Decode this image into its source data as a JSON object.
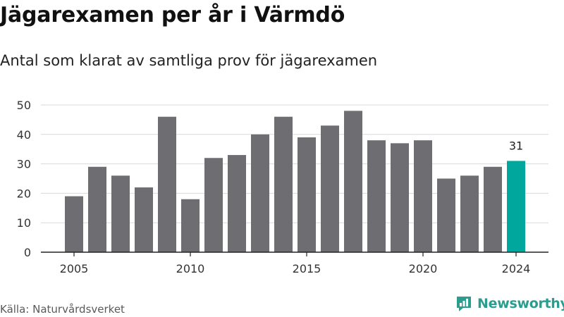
{
  "title": "Jägarexamen per år i Värmdö",
  "subtitle": "Antal som klarat av samtliga prov för jägarexamen",
  "source": "Källa: Naturvårdsverket",
  "brand": "Newsworthy",
  "colors": {
    "bar": "#6e6d72",
    "highlight": "#00a79d",
    "grid": "#d9d9d9",
    "axis": "#222222",
    "brand": "#2a9d8f"
  },
  "chart_data": {
    "type": "bar",
    "title": "Jägarexamen per år i Värmdö",
    "subtitle": "Antal som klarat av samtliga prov för jägarexamen",
    "x": [
      2005,
      2006,
      2007,
      2008,
      2009,
      2010,
      2011,
      2012,
      2013,
      2014,
      2015,
      2016,
      2017,
      2018,
      2019,
      2020,
      2021,
      2022,
      2023,
      2024
    ],
    "values": [
      19,
      29,
      26,
      22,
      46,
      18,
      32,
      33,
      40,
      46,
      39,
      43,
      48,
      38,
      37,
      38,
      25,
      26,
      29,
      31
    ],
    "highlight_x": 2024,
    "data_labels": [
      {
        "x": 2024,
        "label": "31"
      }
    ],
    "x_ticks": [
      "2005",
      "2010",
      "2015",
      "2020",
      "2024"
    ],
    "y_ticks": [
      "0",
      "10",
      "20",
      "30",
      "40",
      "50"
    ],
    "ylim": [
      0,
      50
    ],
    "grid": true,
    "legend": "none"
  }
}
